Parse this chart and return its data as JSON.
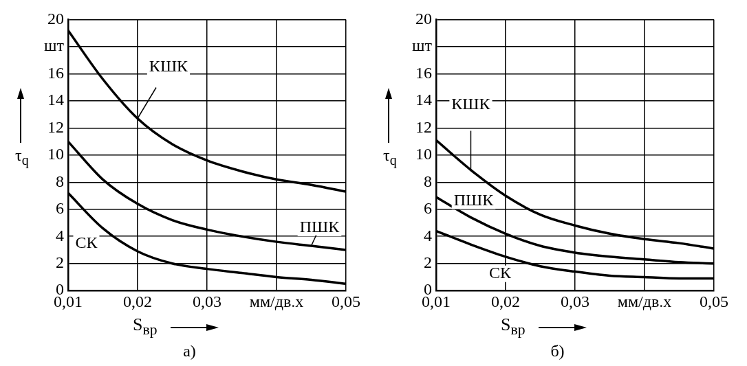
{
  "chart_data": [
    {
      "type": "line",
      "title": "а)",
      "xlabel": "S$_{вр}$",
      "ylabel": "τ$_{q}$",
      "x": [
        0.01,
        0.015,
        0.02,
        0.025,
        0.03,
        0.035,
        0.04,
        0.045,
        0.05
      ],
      "series": [
        {
          "name": "КШК",
          "color": "#000000",
          "values": [
            19.2,
            15.6,
            12.7,
            10.8,
            9.6,
            8.8,
            8.2,
            7.8,
            7.3
          ]
        },
        {
          "name": "ПШК",
          "color": "#000000",
          "values": [
            11,
            8.2,
            6.4,
            5.2,
            4.5,
            4.0,
            3.6,
            3.3,
            3.0
          ]
        },
        {
          "name": "СК",
          "color": "#000000",
          "values": [
            7.2,
            4.6,
            2.9,
            2.0,
            1.6,
            1.3,
            1.0,
            0.8,
            0.5
          ]
        }
      ],
      "xlim": [
        0.01,
        0.05
      ],
      "xticks": [
        {
          "value": 0.01,
          "label": "0,01"
        },
        {
          "value": 0.02,
          "label": "0,02"
        },
        {
          "value": 0.03,
          "label": "0,03"
        },
        {
          "value": 0.04,
          "label": "мм/дв.х"
        },
        {
          "value": 0.05,
          "label": "0,05"
        }
      ],
      "ylim": [
        0,
        20
      ],
      "yticks": [
        0,
        2,
        4,
        6,
        8,
        10,
        12,
        14,
        16,
        {
          "value": 18,
          "label": "шт"
        },
        20
      ],
      "grid": true,
      "legend": false,
      "marker": "none",
      "line_style": "solid"
    },
    {
      "type": "line",
      "title": "б)",
      "xlabel": "S$_{вр}$",
      "ylabel": "τ$_{q}$",
      "x": [
        0.01,
        0.015,
        0.02,
        0.025,
        0.03,
        0.035,
        0.04,
        0.045,
        0.05
      ],
      "series": [
        {
          "name": "КШК",
          "color": "#000000",
          "values": [
            11.1,
            8.9,
            7.0,
            5.6,
            4.8,
            4.2,
            3.8,
            3.5,
            3.1
          ]
        },
        {
          "name": "ПШК",
          "color": "#000000",
          "values": [
            6.9,
            5.4,
            4.2,
            3.3,
            2.8,
            2.5,
            2.3,
            2.1,
            2.0
          ]
        },
        {
          "name": "СК",
          "color": "#000000",
          "values": [
            4.4,
            3.4,
            2.5,
            1.8,
            1.4,
            1.1,
            1.0,
            0.9,
            0.9
          ]
        }
      ],
      "xlim": [
        0.01,
        0.05
      ],
      "xticks": [
        {
          "value": 0.01,
          "label": "0,01"
        },
        {
          "value": 0.02,
          "label": "0,02"
        },
        {
          "value": 0.03,
          "label": "0,03"
        },
        {
          "value": 0.04,
          "label": "мм/дв.х"
        },
        {
          "value": 0.05,
          "label": "0,05"
        }
      ],
      "ylim": [
        0,
        20
      ],
      "yticks": [
        0,
        2,
        4,
        6,
        8,
        10,
        12,
        14,
        16,
        {
          "value": 18,
          "label": "шт"
        },
        20
      ],
      "grid": true,
      "legend": false,
      "marker": "none",
      "line_style": "solid"
    }
  ]
}
